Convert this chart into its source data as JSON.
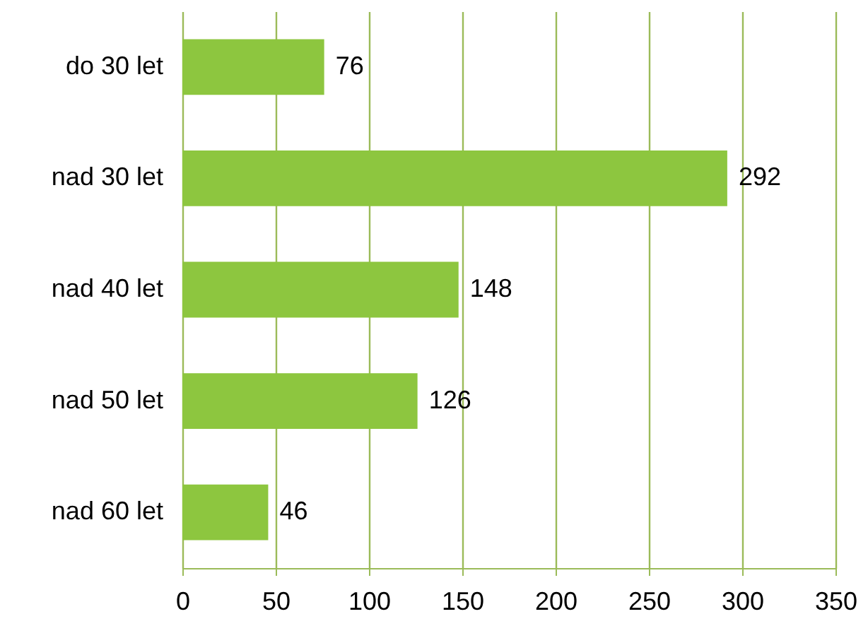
{
  "chart_data": {
    "type": "bar",
    "orientation": "horizontal",
    "categories": [
      "do 30 let",
      "nad 30 let",
      "nad 40 let",
      "nad 50 let",
      "nad 60 let"
    ],
    "values": [
      76,
      292,
      148,
      126,
      46
    ],
    "color": "#8dc63f",
    "xlim": [
      0,
      350
    ],
    "xticks": [
      0,
      50,
      100,
      150,
      200,
      250,
      300,
      350
    ],
    "grid": "x",
    "data_labels": true
  }
}
